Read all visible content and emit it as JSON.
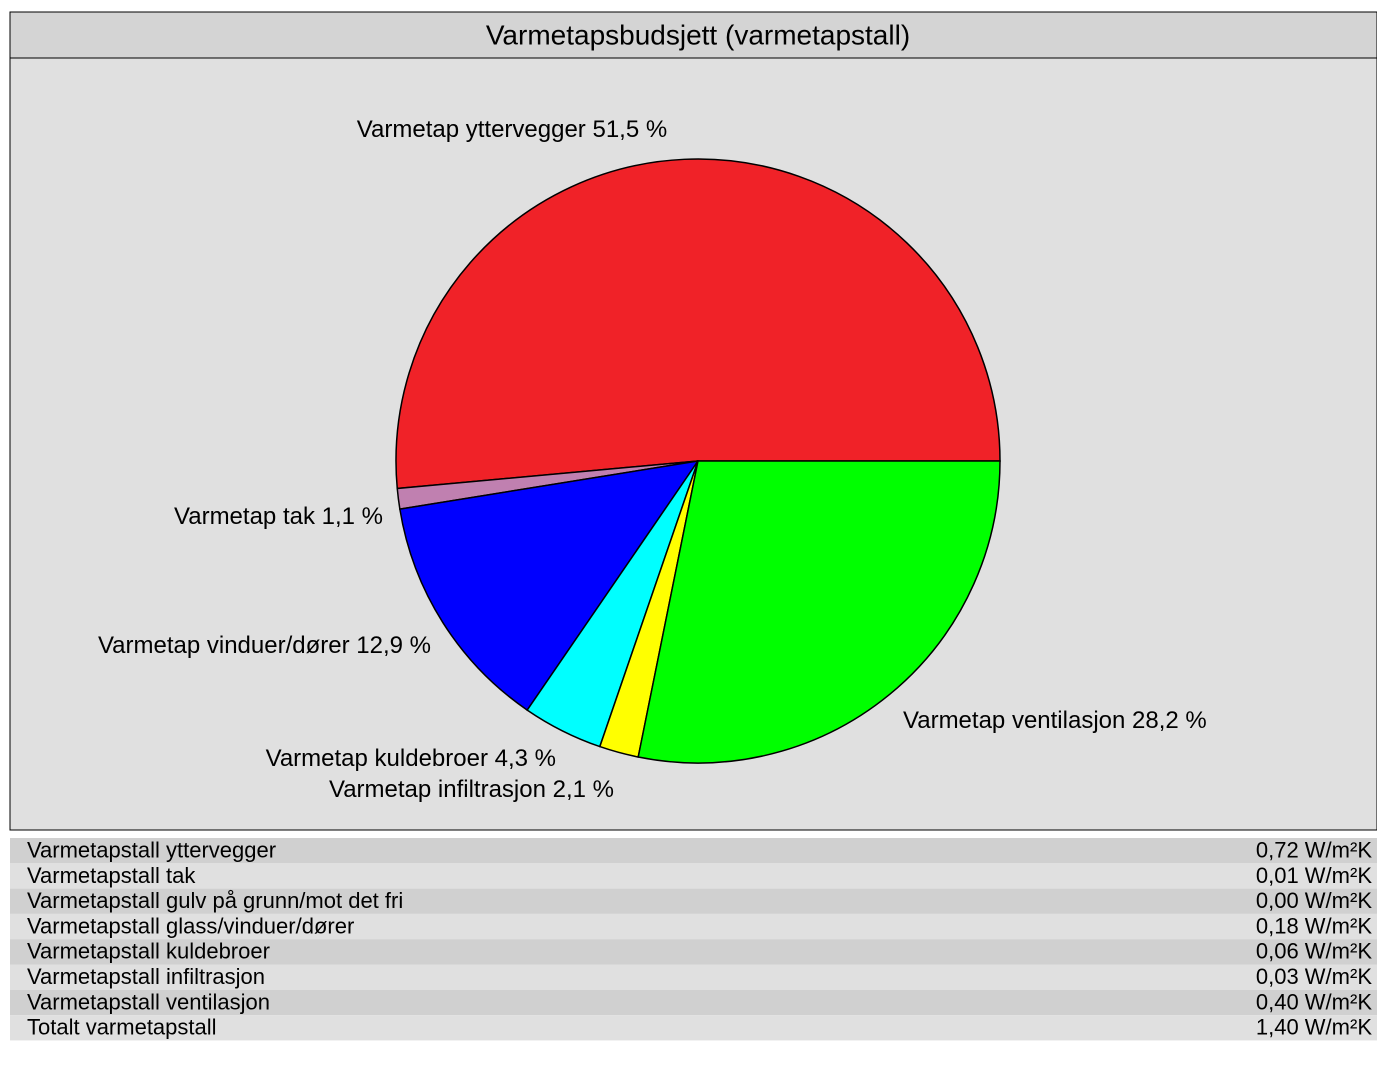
{
  "chart_data": {
    "type": "pie",
    "title": "Varmetapsbudsjett (varmetapstall)",
    "categories": [
      "Varmetap yttervegger",
      "Varmetap tak",
      "Varmetap vinduer/dører",
      "Varmetap kuldebroer",
      "Varmetap infiltrasjon",
      "Varmetap ventilasjon"
    ],
    "values": [
      51.5,
      1.1,
      12.9,
      4.3,
      2.1,
      28.2
    ],
    "value_labels": [
      "51,5 %",
      "1,1 %",
      "12,9 %",
      "4,3 %",
      "2,1 %",
      "28,2 %"
    ],
    "colors": [
      "#f02228",
      "#c080b0",
      "#0000ff",
      "#00ffff",
      "#ffff00",
      "#00ff00"
    ]
  },
  "table": {
    "rows": [
      [
        "Varmetapstall yttervegger",
        "0,72 W/m²K"
      ],
      [
        "Varmetapstall tak",
        "0,01 W/m²K"
      ],
      [
        "Varmetapstall gulv på grunn/mot det fri",
        "0,00 W/m²K"
      ],
      [
        "Varmetapstall glass/vinduer/dører",
        "0,18 W/m²K"
      ],
      [
        "Varmetapstall kuldebroer",
        "0,06 W/m²K"
      ],
      [
        "Varmetapstall infiltrasjon",
        "0,03 W/m²K"
      ],
      [
        "Varmetapstall ventilasjon",
        "0,40 W/m²K"
      ],
      [
        "Totalt varmetapstall",
        "1,40 W/m²K"
      ]
    ]
  }
}
